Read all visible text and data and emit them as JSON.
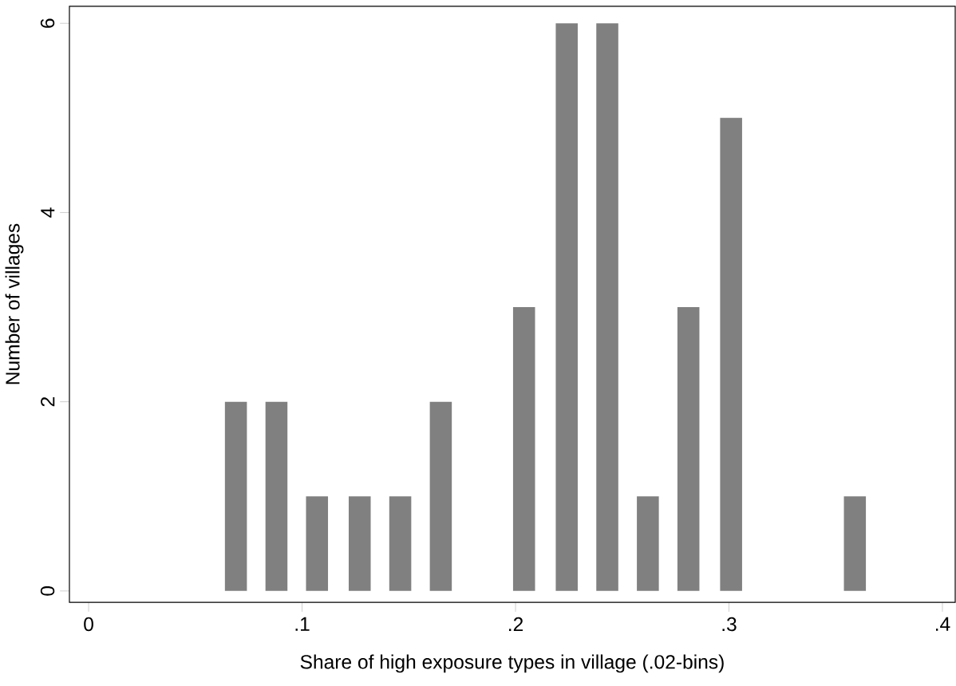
{
  "chart_data": {
    "type": "bar",
    "xlabel": "Share of high exposure types in village (.02-bins)",
    "ylabel": "Number of villages",
    "x": [
      0.069,
      0.088,
      0.107,
      0.127,
      0.146,
      0.165,
      0.204,
      0.224,
      0.243,
      0.262,
      0.281,
      0.301,
      0.359
    ],
    "values": [
      2,
      2,
      1,
      1,
      1,
      2,
      3,
      6,
      6,
      1,
      3,
      5,
      1
    ],
    "color": "#808080",
    "xlim": [
      -0.009,
      0.406
    ],
    "ylim": [
      -0.12,
      6.18
    ],
    "xticks": [
      0,
      {
        "value": 0.1,
        "label": ".1"
      },
      {
        "value": 0.2,
        "label": ".2"
      },
      {
        "value": 0.3,
        "label": ".3"
      },
      {
        "value": 0.4,
        "label": ".4"
      }
    ],
    "yticks": [
      0,
      2,
      4,
      6
    ],
    "grid": false
  }
}
